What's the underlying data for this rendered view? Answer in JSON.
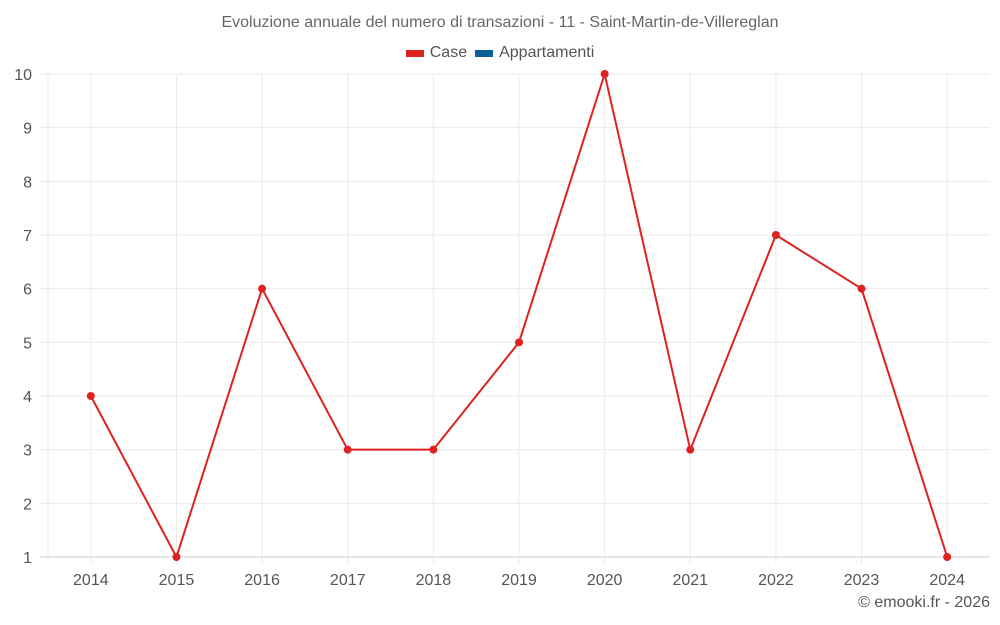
{
  "title": "Evoluzione annuale del numero di transazioni - 11 - Saint-Martin-de-Villereglan",
  "legend": [
    {
      "label": "Case",
      "color": "#dd2222"
    },
    {
      "label": "Appartamenti",
      "color": "#0b5f99"
    }
  ],
  "footer": "© emooki.fr - 2026",
  "chart_data": {
    "type": "line",
    "title": "Evoluzione annuale del numero di transazioni - 11 - Saint-Martin-de-Villereglan",
    "xlabel": "",
    "ylabel": "",
    "categories": [
      "2014",
      "2015",
      "2016",
      "2017",
      "2018",
      "2019",
      "2020",
      "2021",
      "2022",
      "2023",
      "2024"
    ],
    "series": [
      {
        "name": "Case",
        "color": "#dd2222",
        "values": [
          4,
          1,
          6,
          3,
          3,
          5,
          10,
          3,
          7,
          6,
          1
        ]
      },
      {
        "name": "Appartamenti",
        "color": "#0b5f99",
        "values": []
      }
    ],
    "ylim": [
      1,
      10
    ],
    "yticks": [
      1,
      2,
      3,
      4,
      5,
      6,
      7,
      8,
      9,
      10
    ],
    "grid": true,
    "legend_position": "top"
  }
}
